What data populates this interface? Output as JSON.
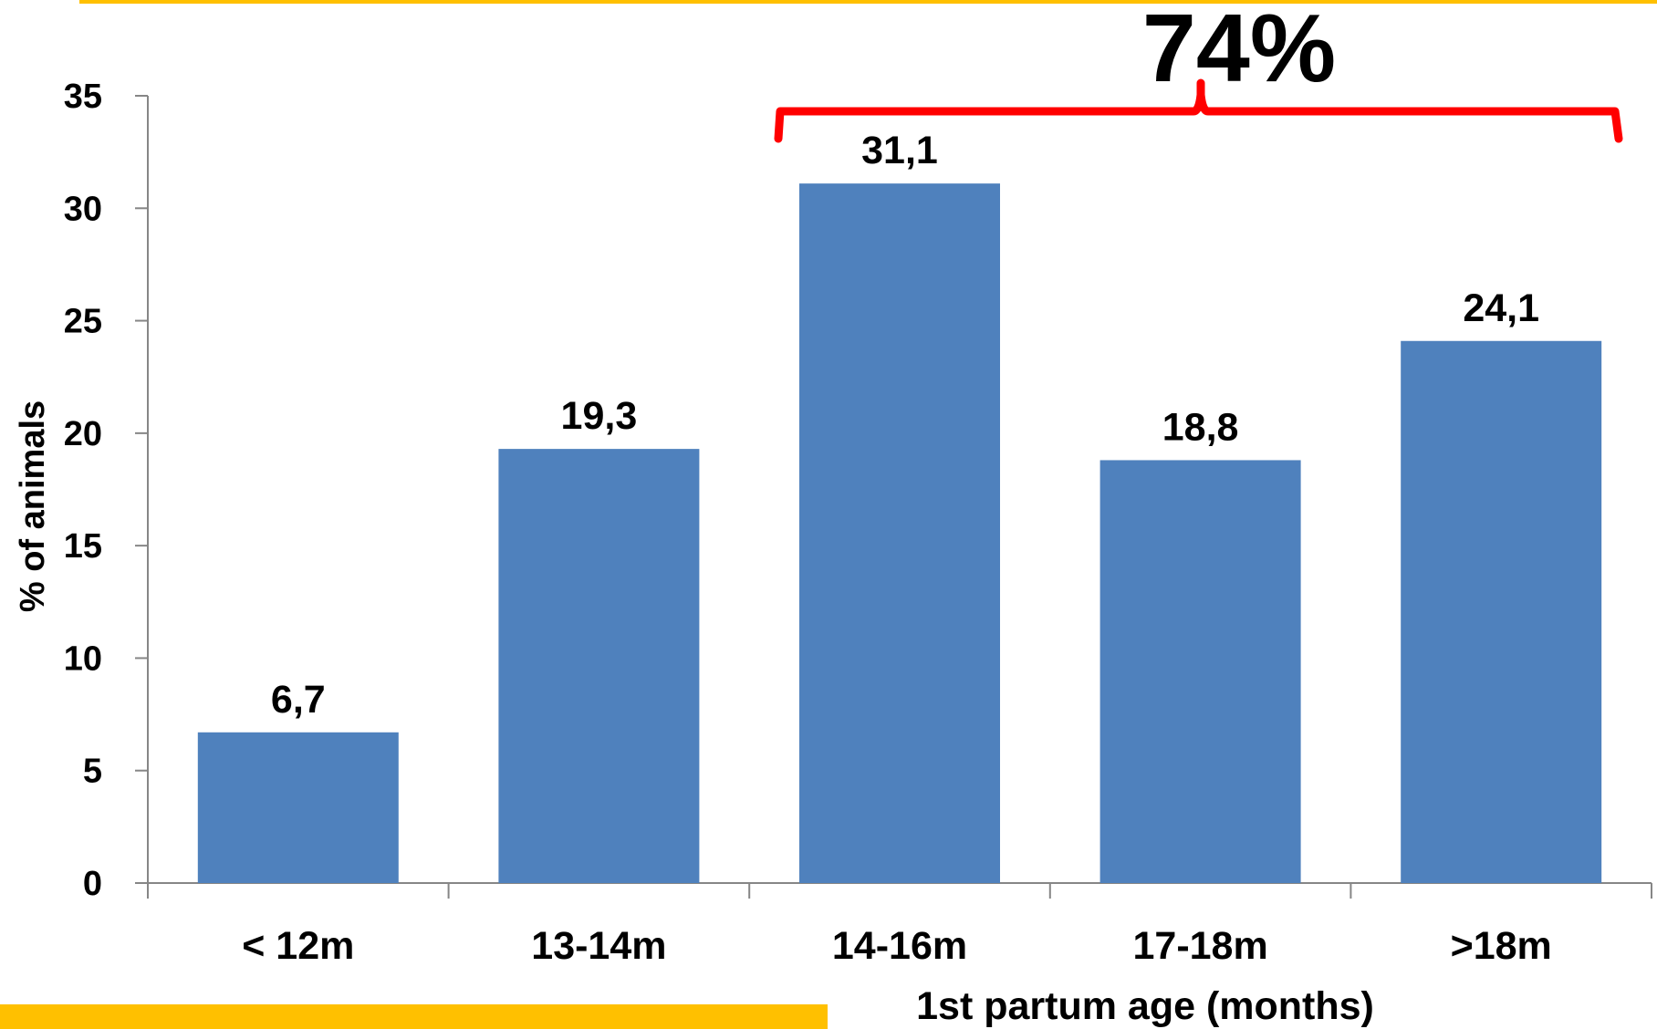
{
  "colors": {
    "accent_bar": "#FFC000",
    "bar_fill": "#4F81BD",
    "bracket": "#FF0000",
    "axis": "#868686",
    "text": "#000000"
  },
  "annotation": {
    "label": "74%",
    "spans_categories": [
      "14-16m",
      "17-18m",
      ">18m"
    ]
  },
  "chart_data": {
    "type": "bar",
    "categories": [
      "< 12m",
      "13-14m",
      "14-16m",
      "17-18m",
      ">18m"
    ],
    "values": [
      6.7,
      19.3,
      31.1,
      18.8,
      24.1
    ],
    "value_labels": [
      "6,7",
      "19,3",
      "31,1",
      "18,8",
      "24,1"
    ],
    "xlabel": "1st partum age (months)",
    "ylabel": "% of animals",
    "ylim": [
      0,
      35
    ],
    "yticks": [
      0,
      5,
      10,
      15,
      20,
      25,
      30,
      35
    ],
    "grid": false,
    "legend": "none"
  }
}
